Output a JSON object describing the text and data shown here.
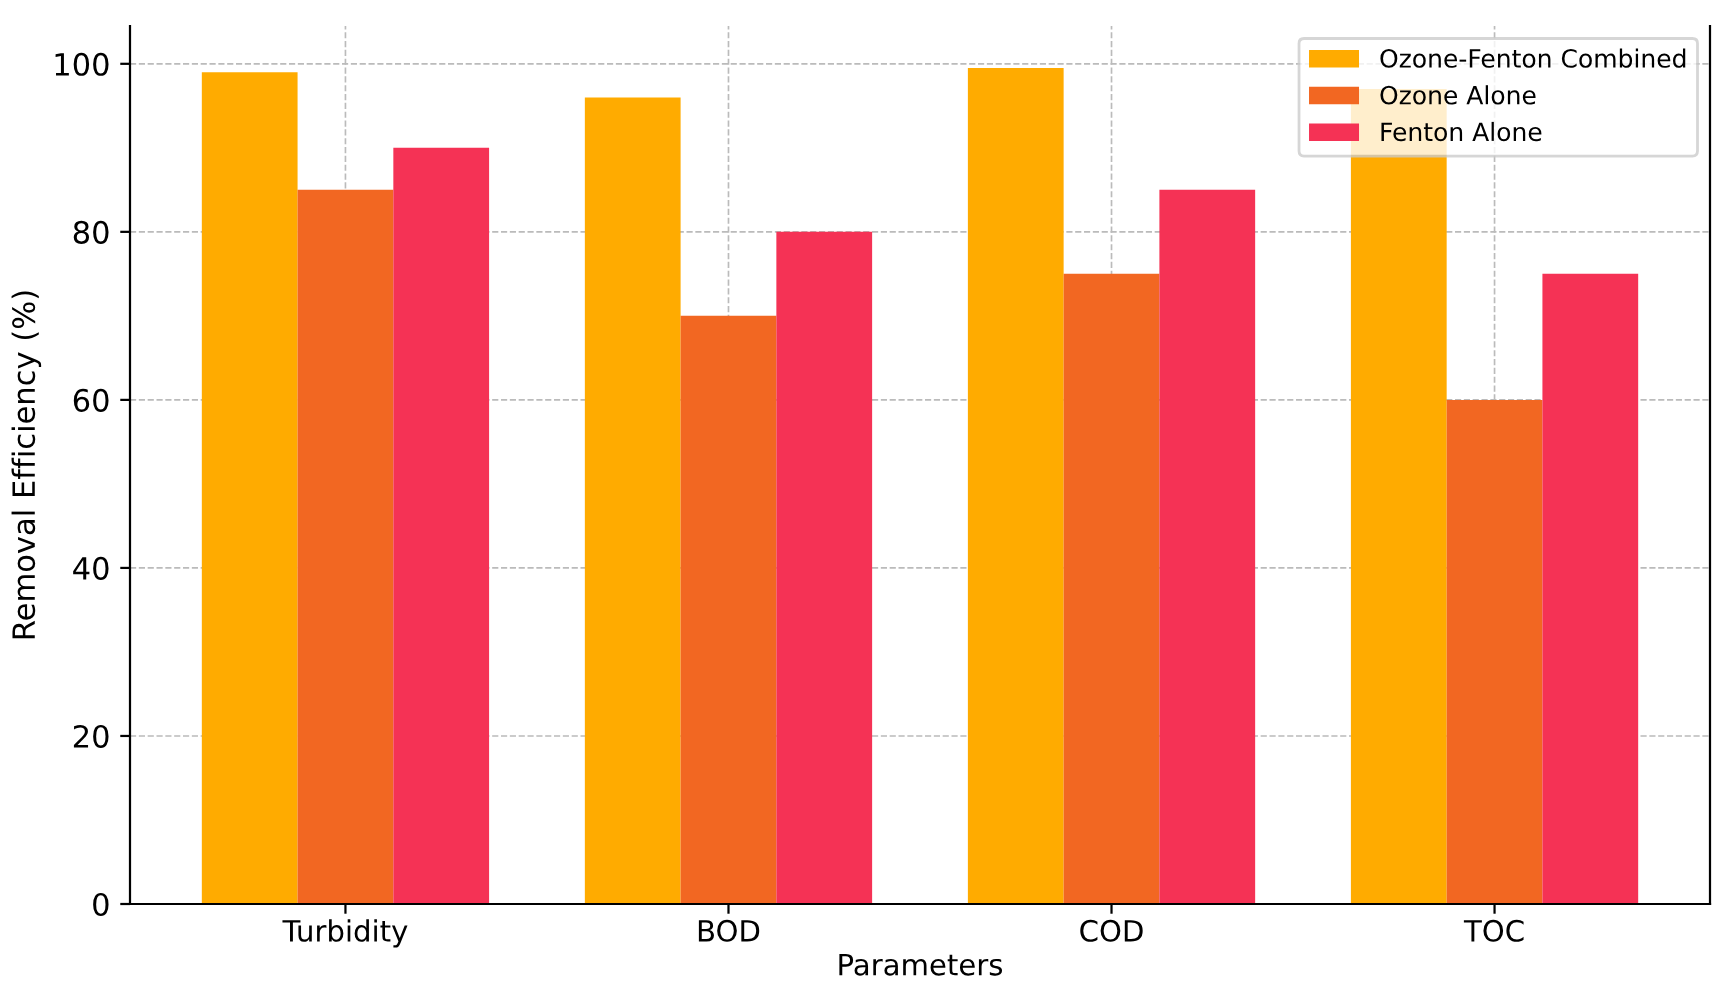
{
  "chart_data": {
    "type": "bar",
    "xlabel": "Parameters",
    "ylabel": "Removal Efficiency (%)",
    "categories": [
      "Turbidity",
      "BOD",
      "COD",
      "TOC"
    ],
    "series": [
      {
        "name": "Ozone-Fenton Combined",
        "color": "#ffab00",
        "values": [
          99,
          96,
          99.5,
          97
        ]
      },
      {
        "name": "Ozone Alone",
        "color": "#f26722",
        "values": [
          85,
          70,
          75,
          60
        ]
      },
      {
        "name": "Fenton Alone",
        "color": "#f53255",
        "values": [
          90,
          80,
          85,
          75
        ]
      }
    ],
    "ylim": [
      0,
      104.5
    ],
    "yticks": [
      0,
      20,
      40,
      60,
      80,
      100
    ],
    "grid": true,
    "legend": "top right"
  }
}
